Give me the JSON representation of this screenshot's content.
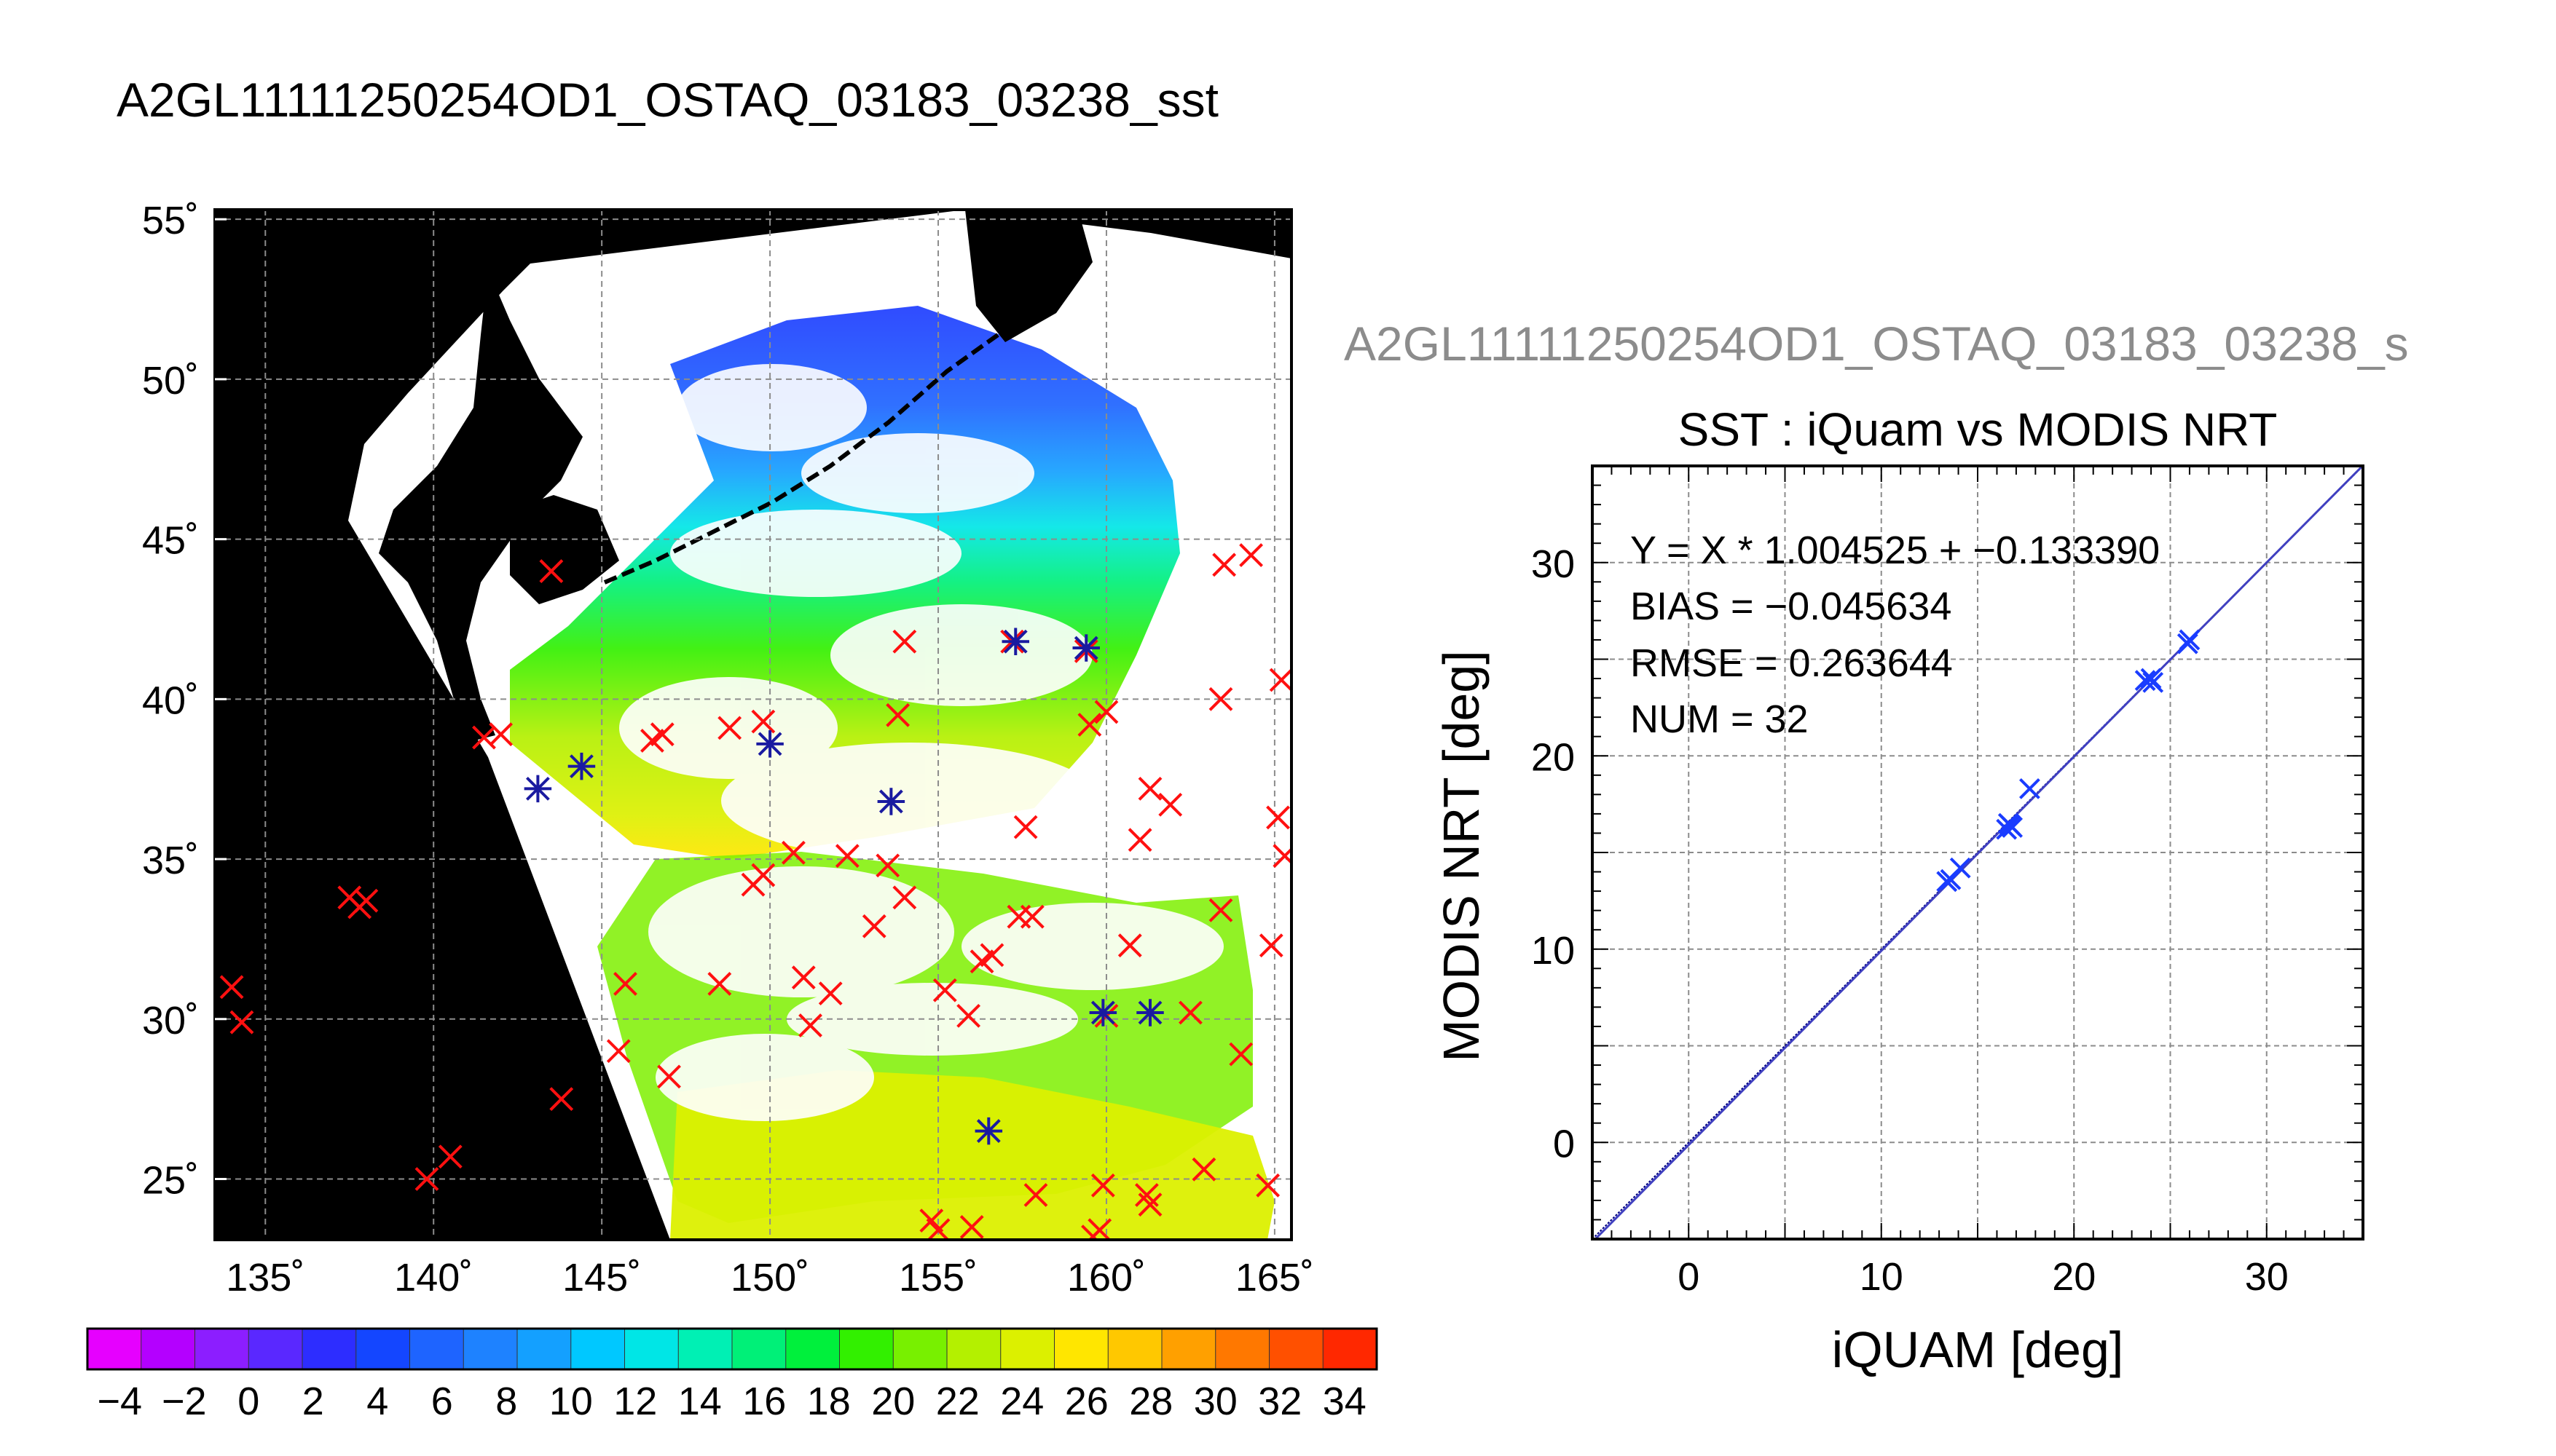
{
  "figure": {
    "main_title": "A2GL11111250254OD1_OSTAQ_03183_03238_sst",
    "secondary_title": "A2GL11111250254OD1_OSTAQ_03183_03238_s"
  },
  "chart_data": [
    {
      "type": "map",
      "panel": "sst-map",
      "lat_ticks": [
        "55˚",
        "50˚",
        "45˚",
        "40˚",
        "35˚",
        "30˚",
        "25˚"
      ],
      "lat_values": [
        55,
        50,
        45,
        40,
        35,
        30,
        25
      ],
      "lon_ticks": [
        "135˚",
        "140˚",
        "145˚",
        "150˚",
        "155˚",
        "160˚",
        "165˚"
      ],
      "lon_values": [
        135,
        140,
        145,
        150,
        155,
        160,
        165
      ],
      "xlim": [
        133.5,
        165.5
      ],
      "ylim": [
        23.1,
        55.3
      ],
      "grid": true,
      "land_color": "#000000",
      "cloud_color": "#ffffff",
      "colorbar": {
        "ticks": [
          "−4",
          "−2",
          "0",
          "2",
          "4",
          "6",
          "8",
          "10",
          "12",
          "14",
          "16",
          "18",
          "20",
          "22",
          "24",
          "26",
          "28",
          "30",
          "32",
          "34"
        ],
        "range": [
          -5,
          35
        ],
        "colors": [
          "#e600ff",
          "#b400ff",
          "#8c1eff",
          "#5a28ff",
          "#2d2dff",
          "#1446ff",
          "#1e64ff",
          "#1e82ff",
          "#14a0ff",
          "#00c8ff",
          "#00e6e6",
          "#00f0b4",
          "#00f078",
          "#00f03c",
          "#32f000",
          "#78f000",
          "#b4f000",
          "#dcf000",
          "#ffe600",
          "#ffc800",
          "#ffa000",
          "#ff7800",
          "#ff5000",
          "#ff2800"
        ]
      },
      "matchup_points_red": [
        [
          143.5,
          44
        ],
        [
          141.5,
          38.8
        ],
        [
          142.0,
          38.9
        ],
        [
          146.5,
          38.7
        ],
        [
          146.8,
          38.9
        ],
        [
          148.8,
          39.1
        ],
        [
          149.8,
          39.3
        ],
        [
          153.8,
          39.5
        ],
        [
          154.0,
          41.8
        ],
        [
          159.5,
          39.2
        ],
        [
          160.0,
          39.6
        ],
        [
          137.5,
          33.8
        ],
        [
          137.8,
          33.5
        ],
        [
          138.0,
          33.7
        ],
        [
          134.0,
          31.0
        ],
        [
          134.3,
          29.9
        ],
        [
          143.8,
          27.5
        ],
        [
          139.8,
          25.0
        ],
        [
          140.5,
          25.7
        ],
        [
          145.5,
          29.0
        ],
        [
          145.7,
          31.1
        ],
        [
          147.0,
          28.2
        ],
        [
          148.5,
          31.1
        ],
        [
          149.5,
          34.2
        ],
        [
          149.8,
          34.5
        ],
        [
          150.7,
          35.2
        ],
        [
          151.0,
          31.3
        ],
        [
          151.2,
          29.8
        ],
        [
          151.8,
          30.8
        ],
        [
          152.3,
          35.1
        ],
        [
          153.1,
          32.9
        ],
        [
          153.5,
          34.8
        ],
        [
          154.0,
          33.8
        ],
        [
          155.2,
          30.9
        ],
        [
          155.9,
          30.1
        ],
        [
          156.3,
          31.8
        ],
        [
          156.6,
          32.0
        ],
        [
          157.4,
          33.2
        ],
        [
          157.8,
          33.2
        ],
        [
          157.6,
          36.0
        ],
        [
          161.3,
          37.2
        ],
        [
          161.9,
          36.7
        ],
        [
          161.0,
          35.6
        ],
        [
          160.7,
          32.3
        ],
        [
          162.5,
          30.2
        ],
        [
          163.4,
          33.4
        ],
        [
          164.0,
          28.9
        ],
        [
          163.4,
          40.0
        ],
        [
          163.5,
          44.2
        ],
        [
          164.3,
          44.5
        ],
        [
          165.2,
          40.6
        ],
        [
          165.1,
          36.3
        ],
        [
          165.3,
          35.1
        ],
        [
          164.9,
          32.3
        ],
        [
          164.8,
          24.8
        ],
        [
          162.9,
          25.3
        ],
        [
          161.2,
          24.5
        ],
        [
          161.3,
          24.2
        ],
        [
          159.8,
          23.4
        ],
        [
          159.6,
          23.2
        ],
        [
          159.9,
          24.8
        ],
        [
          157.9,
          24.5
        ],
        [
          156.0,
          23.5
        ],
        [
          154.8,
          23.7
        ],
        [
          155.0,
          23.4
        ],
        [
          160.0,
          30.1
        ],
        [
          159.4,
          41.5
        ],
        [
          157.2,
          41.8
        ]
      ],
      "matchup_points_blue": [
        [
          143.1,
          37.2
        ],
        [
          144.4,
          37.9
        ],
        [
          150.0,
          38.6
        ],
        [
          153.6,
          36.8
        ],
        [
          157.3,
          41.8
        ],
        [
          159.4,
          41.6
        ],
        [
          159.9,
          30.2
        ],
        [
          161.3,
          30.2
        ],
        [
          156.5,
          26.5
        ]
      ]
    },
    {
      "type": "scatter",
      "panel": "scatter",
      "title": "SST : iQuam vs MODIS NRT",
      "xlabel": "iQUAM [deg]",
      "ylabel": "MODIS NRT [deg]",
      "xlim": [
        -5,
        35
      ],
      "ylim": [
        -5,
        35
      ],
      "x_ticks": [
        0,
        10,
        20,
        30
      ],
      "y_ticks": [
        0,
        10,
        20,
        30
      ],
      "x_tick_labels": [
        "0",
        "10",
        "20",
        "30"
      ],
      "y_tick_labels": [
        "0",
        "10",
        "20",
        "30"
      ],
      "grid": true,
      "fit": {
        "slope": 1.004525,
        "intercept": -0.13339
      },
      "stats": {
        "equation": "Y = X * 1.004525 + −0.133390",
        "bias": "BIAS = −0.045634",
        "rmse": "RMSE = 0.263644",
        "num": "NUM = 32"
      },
      "points": [
        [
          13.4,
          13.5
        ],
        [
          13.6,
          13.6
        ],
        [
          14.1,
          14.2
        ],
        [
          16.5,
          16.2
        ],
        [
          16.6,
          16.5
        ],
        [
          16.7,
          16.4
        ],
        [
          16.8,
          16.3
        ],
        [
          17.7,
          18.3
        ],
        [
          23.7,
          23.9
        ],
        [
          24.0,
          24.0
        ],
        [
          24.1,
          23.8
        ],
        [
          25.9,
          25.8
        ],
        [
          26.0,
          26.0
        ]
      ]
    }
  ]
}
